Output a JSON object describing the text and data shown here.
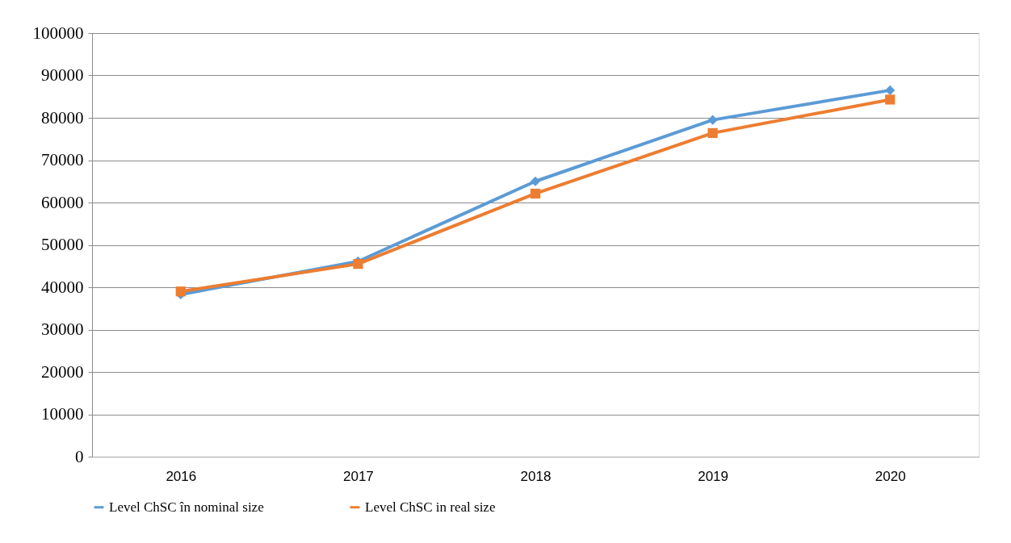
{
  "chart_data": {
    "type": "line",
    "categories": [
      "2016",
      "2017",
      "2018",
      "2019",
      "2020"
    ],
    "series": [
      {
        "name": "Level ChSC în nominal size",
        "color": "#5b9bd5",
        "marker": "diamond",
        "values": [
          38300,
          46100,
          65000,
          79500,
          86500
        ]
      },
      {
        "name": "Level ChSC in real size",
        "color": "#ed7d31",
        "marker": "square",
        "values": [
          39000,
          45500,
          62100,
          76400,
          84300
        ]
      }
    ],
    "ylim": [
      0,
      100000
    ],
    "yticks": [
      0,
      10000,
      20000,
      30000,
      40000,
      50000,
      60000,
      70000,
      80000,
      90000,
      100000
    ],
    "grid": "y",
    "legend": "bottom",
    "line_style": "solid"
  }
}
